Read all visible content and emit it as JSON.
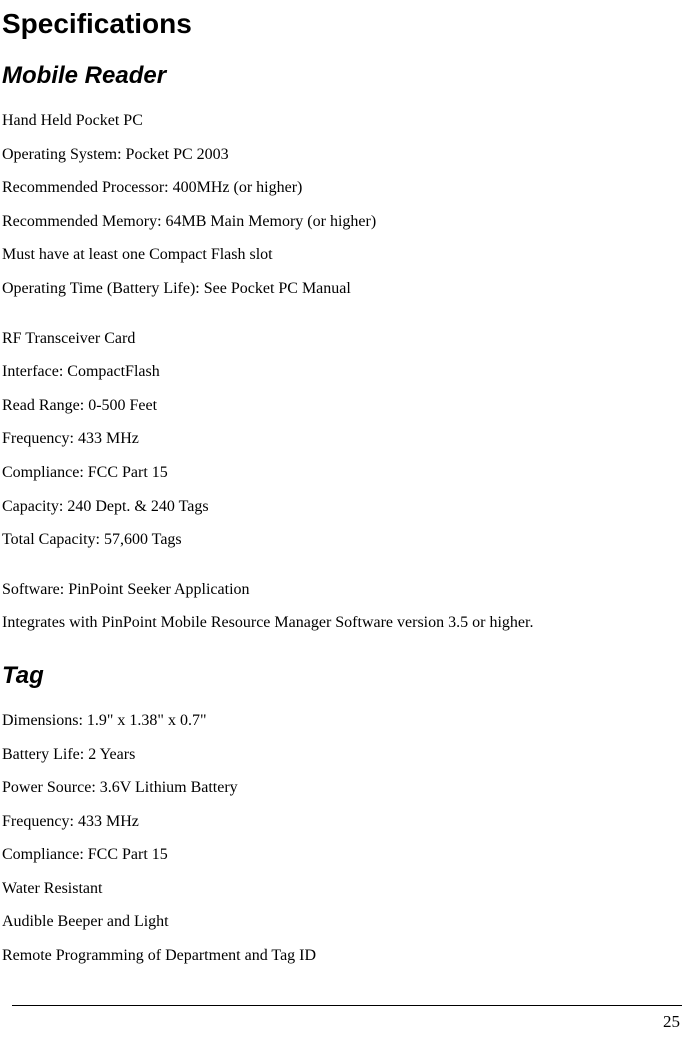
{
  "title": "Specifications",
  "sections": {
    "mobileReader": {
      "heading": "Mobile Reader",
      "group1": {
        "line1": "Hand Held Pocket PC",
        "line2": "Operating System: Pocket PC 2003",
        "line3": "Recommended Processor: 400MHz (or higher)",
        "line4": "Recommended Memory: 64MB Main Memory (or higher)",
        "line5": "Must have at least one Compact Flash slot",
        "line6": "Operating Time (Battery Life): See Pocket PC Manual"
      },
      "group2": {
        "line1": "RF Transceiver Card",
        "line2": "Interface: CompactFlash",
        "line3": "Read Range: 0-500 Feet",
        "line4": "Frequency: 433 MHz",
        "line5": "Compliance: FCC Part 15",
        "line6": "Capacity: 240 Dept. & 240 Tags",
        "line7": "Total Capacity: 57,600 Tags"
      },
      "group3": {
        "line1": "Software: PinPoint Seeker Application",
        "line2": "Integrates with PinPoint Mobile Resource Manager Software version 3.5 or higher."
      }
    },
    "tag": {
      "heading": "Tag",
      "lines": {
        "line1": "Dimensions: 1.9\" x 1.38\" x 0.7\"",
        "line2": "Battery Life: 2 Years",
        "line3": "Power Source: 3.6V Lithium Battery",
        "line4": "Frequency: 433 MHz",
        "line5": "Compliance: FCC Part 15",
        "line6": "Water Resistant",
        "line7": "Audible Beeper and Light",
        "line8": "Remote Programming of Department and Tag ID"
      }
    }
  },
  "pageNumber": "25"
}
